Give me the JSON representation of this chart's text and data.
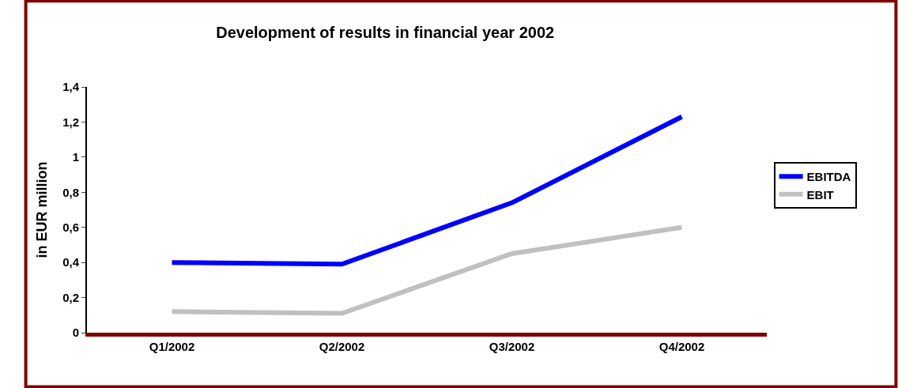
{
  "chart_data": {
    "type": "line",
    "title": "Development of results in financial year 2002",
    "ylabel": "in EUR million",
    "categories": [
      "Q1/2002",
      "Q2/2002",
      "Q3/2002",
      "Q4/2002"
    ],
    "series": [
      {
        "name": "EBITDA",
        "color": "#0000ff",
        "values": [
          0.4,
          0.39,
          0.74,
          1.23
        ]
      },
      {
        "name": "EBIT",
        "color": "#c0c0c0",
        "values": [
          0.12,
          0.11,
          0.45,
          0.6
        ]
      }
    ],
    "ylim": [
      0,
      1.4
    ],
    "yticks": [
      0,
      {
        "value": 0.2,
        "label": "0,2"
      },
      {
        "value": 0.4,
        "label": "0,4"
      },
      {
        "value": 0.6,
        "label": "0,6"
      },
      {
        "value": 0.8,
        "label": "0,8"
      },
      1,
      {
        "value": 1.2,
        "label": "1,2"
      },
      {
        "value": 1.4,
        "label": "1,4"
      }
    ],
    "legend": "right",
    "marker": "none",
    "line_style": "solid"
  }
}
